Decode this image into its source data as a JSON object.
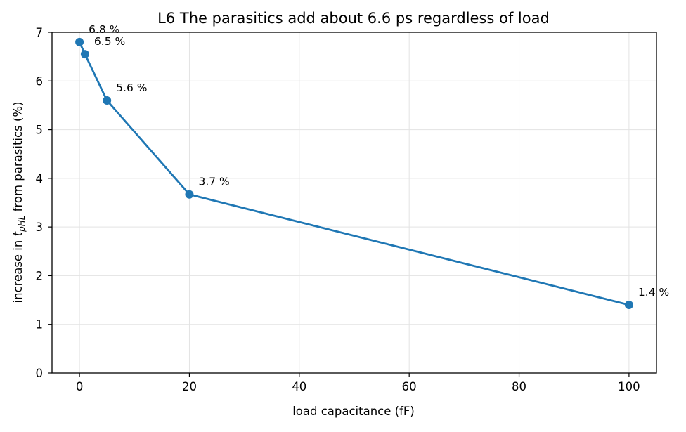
{
  "chart_data": {
    "type": "line",
    "title": "L6  The parasitics add about 6.6 ps regardless of load",
    "xlabel": "load capacitance (fF)",
    "ylabel": {
      "prefix": "increase in ",
      "var_base": "t",
      "var_sub": "pHL",
      "suffix": " from parasitics (%)"
    },
    "xlim": [
      -5,
      105
    ],
    "ylim": [
      0,
      7
    ],
    "xticks": [
      0,
      20,
      40,
      60,
      80,
      100
    ],
    "yticks": [
      0,
      1,
      2,
      3,
      4,
      5,
      6,
      7
    ],
    "grid": true,
    "x": [
      0,
      1,
      5,
      20,
      100
    ],
    "y": [
      6.8,
      6.55,
      5.6,
      3.67,
      1.4
    ],
    "point_labels": [
      "6.8 %",
      "6.5 %",
      "5.6 %",
      "3.7 %",
      "1.4 %"
    ],
    "line_color": "#1f77b4"
  }
}
